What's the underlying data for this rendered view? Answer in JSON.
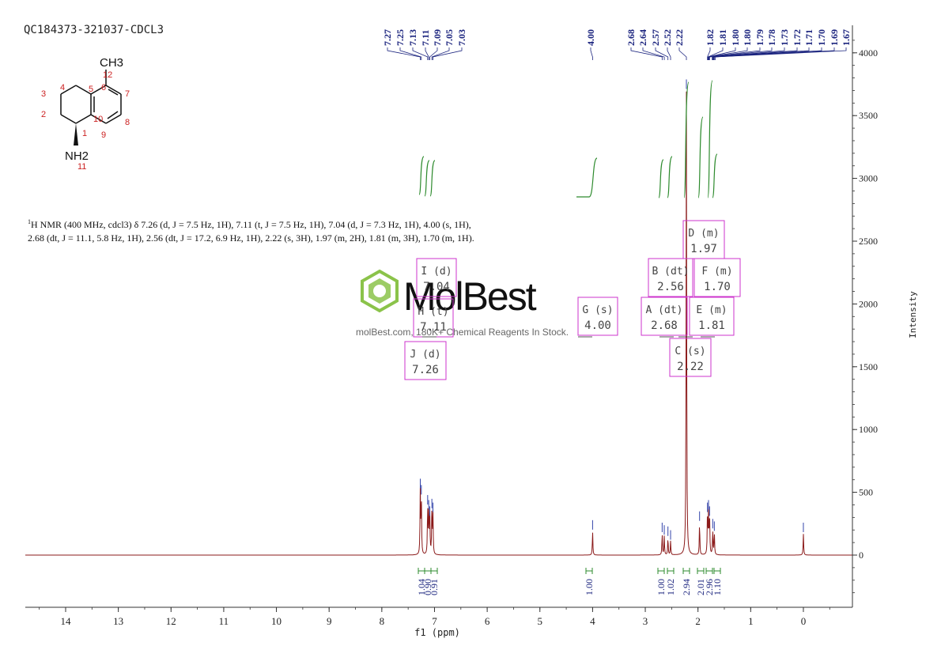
{
  "sample_id": "QC184373-321037-CDCL3",
  "structure": {
    "atom_labels": [
      "1",
      "2",
      "3",
      "4",
      "5",
      "6",
      "7",
      "8",
      "9",
      "10",
      "11",
      "12"
    ],
    "substituent_top": "CH3",
    "substituent_bottom": "NH2"
  },
  "nmr_description": {
    "nucleus_sup": "1",
    "text": "H NMR (400 MHz, cdcl3) δ 7.26 (d, J = 7.5 Hz, 1H), 7.11 (t, J = 7.5 Hz, 1H), 7.04 (d, J = 7.3 Hz, 1H), 4.00 (s, 1H), 2.68 (dt, J = 11.1, 5.8 Hz, 1H), 2.56 (dt, J = 17.2, 6.9 Hz, 1H), 2.22 (s, 3H), 1.97 (m, 2H), 1.81 (m, 3H), 1.70 (m, 1H)."
  },
  "watermark": {
    "brand": "MolBest",
    "tagline": "molBest.com, 180K+ Chemical Reagents In Stock."
  },
  "colors": {
    "spectrum": "#8b1a1a",
    "integral": "#2e8b2e",
    "peak_label": "#1a237e",
    "multiplet_box": "#cc33cc",
    "axis": "#333333"
  },
  "chart_data": {
    "type": "line",
    "title": "",
    "xlabel": "f1 (ppm)",
    "ylabel": "Intensity",
    "xlim": [
      14.8,
      -0.9
    ],
    "ylim": [
      -400,
      4150
    ],
    "x_ticks": [
      14,
      13,
      12,
      11,
      10,
      9,
      8,
      7,
      6,
      5,
      4,
      3,
      2,
      1,
      0
    ],
    "y_ticks": [
      0,
      500,
      1000,
      1500,
      2000,
      2500,
      3000,
      3500,
      4000
    ],
    "peaks": [
      {
        "ppm": 7.27,
        "height": 520
      },
      {
        "ppm": 7.25,
        "height": 470
      },
      {
        "ppm": 7.13,
        "height": 390
      },
      {
        "ppm": 7.11,
        "height": 350
      },
      {
        "ppm": 7.09,
        "height": 300
      },
      {
        "ppm": 7.05,
        "height": 360
      },
      {
        "ppm": 7.03,
        "height": 330
      },
      {
        "ppm": 4.0,
        "height": 190
      },
      {
        "ppm": 2.68,
        "height": 170
      },
      {
        "ppm": 2.64,
        "height": 150
      },
      {
        "ppm": 2.57,
        "height": 140
      },
      {
        "ppm": 2.52,
        "height": 110
      },
      {
        "ppm": 2.22,
        "height": 3700
      },
      {
        "ppm": 1.97,
        "height": 260
      },
      {
        "ppm": 1.82,
        "height": 330
      },
      {
        "ppm": 1.8,
        "height": 350
      },
      {
        "ppm": 1.78,
        "height": 300
      },
      {
        "ppm": 1.72,
        "height": 200
      },
      {
        "ppm": 1.69,
        "height": 180
      },
      {
        "ppm": 0.0,
        "height": 170
      }
    ],
    "peak_labels": [
      "7.27",
      "7.25",
      "7.13",
      "7.11",
      "7.09",
      "7.05",
      "7.03",
      "4.00",
      "2.68",
      "2.64",
      "2.57",
      "2.52",
      "2.22",
      "1.82",
      "1.81",
      "1.80",
      "1.80",
      "1.79",
      "1.78",
      "1.73",
      "1.72",
      "1.71",
      "1.70",
      "1.69",
      "1.67"
    ],
    "integrals": [
      {
        "ppm": 7.26,
        "value": "1.04"
      },
      {
        "ppm": 7.11,
        "value": "0.90"
      },
      {
        "ppm": 7.04,
        "value": "0.91"
      },
      {
        "ppm": 4.0,
        "value": "1.00"
      },
      {
        "ppm": 2.68,
        "value": "1.00"
      },
      {
        "ppm": 2.56,
        "value": "1.02"
      },
      {
        "ppm": 2.22,
        "value": "2.94"
      },
      {
        "ppm": 1.97,
        "value": "2.01"
      },
      {
        "ppm": 1.81,
        "value": "2.96"
      },
      {
        "ppm": 1.7,
        "value": "1.10"
      }
    ],
    "multiplets": [
      {
        "label": "I (d)",
        "shift": "7.04"
      },
      {
        "label": "H (t)",
        "shift": "7.11"
      },
      {
        "label": "J (d)",
        "shift": "7.26"
      },
      {
        "label": "G (s)",
        "shift": "4.00"
      },
      {
        "label": "D (m)",
        "shift": "1.97"
      },
      {
        "label": "B (dt)",
        "shift": "2.56"
      },
      {
        "label": "F (m)",
        "shift": "1.70"
      },
      {
        "label": "A (dt)",
        "shift": "2.68"
      },
      {
        "label": "E (m)",
        "shift": "1.81"
      },
      {
        "label": "C (s)",
        "shift": "2.22"
      }
    ]
  }
}
